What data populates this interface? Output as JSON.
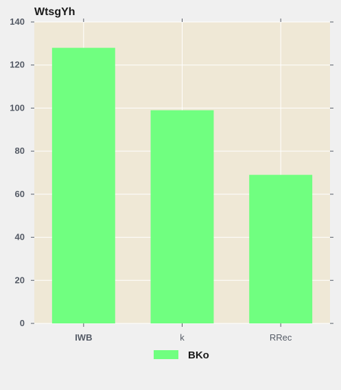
{
  "chart_data": {
    "type": "bar",
    "title": "WtsgYh",
    "xlabel": "",
    "ylabel": "",
    "categories": [
      "IWB",
      "k",
      "RRec"
    ],
    "series": [
      {
        "name": "BKo",
        "values": [
          128,
          99,
          69
        ]
      }
    ],
    "ylim": [
      0,
      140
    ],
    "yticks": [
      0,
      20,
      40,
      60,
      80,
      100,
      120,
      140
    ],
    "grid": true,
    "legend": "bottom-center",
    "colors": {
      "bar": "#70ff80",
      "plot_background": "#efe8d6",
      "grid": "#ffffff",
      "page_background": "#f0f0f0"
    }
  }
}
